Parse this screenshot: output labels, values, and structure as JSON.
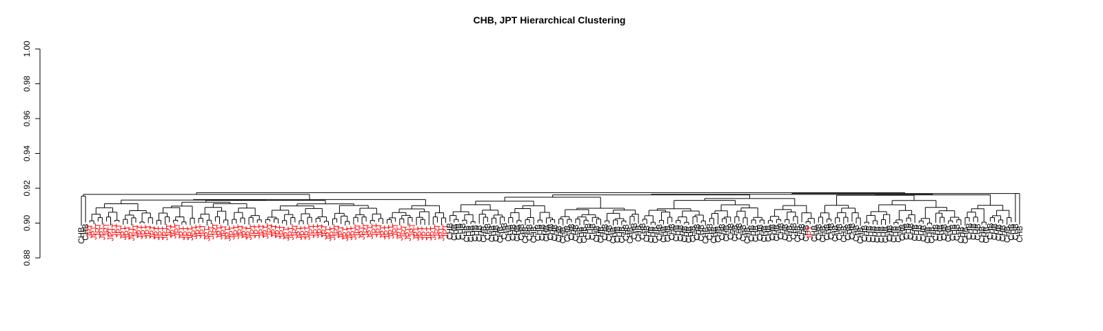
{
  "chart_data": {
    "type": "dendrogram",
    "title": "CHB, JPT Hierarchical Clustering",
    "xlabel": "",
    "ylabel": "",
    "ylim": [
      0.88,
      1.0
    ],
    "yticks": [
      "0.88",
      "0.90",
      "0.92",
      "0.94",
      "0.96",
      "0.98",
      "1.00"
    ],
    "ytick_values": [
      0.88,
      0.9,
      0.92,
      0.94,
      0.96,
      0.98,
      1.0
    ],
    "grid": false,
    "legend": "none",
    "colors": {
      "CHB": "#000000",
      "JPT": "#ff0000"
    },
    "root_height": 0.9175,
    "groups": [
      {
        "label": "CHB",
        "count": 2,
        "merge_height": 0.9155
      },
      {
        "label": "JPT",
        "count": 86,
        "merge_height": 0.9135
      },
      {
        "label": "CHB",
        "count": 134,
        "merge_height": 0.9165
      },
      {
        "label": "CHB",
        "count": 2,
        "merge_height": 0.917
      }
    ],
    "inserted_leaves": [
      {
        "label": "JPT",
        "after_group": 2,
        "position": 86
      }
    ]
  }
}
